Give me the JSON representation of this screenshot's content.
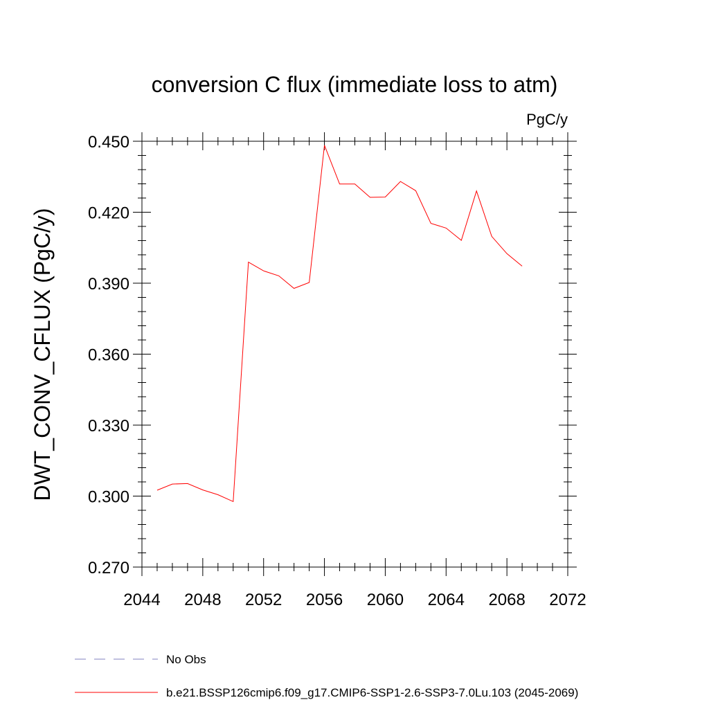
{
  "chart_data": {
    "type": "line",
    "title": "conversion C flux (immediate loss to atm)",
    "units_label": "PgC/y",
    "ylabel": "DWT_CONV_CFLUX  (PgC/y)",
    "xlabel": "",
    "xlim": [
      2044,
      2072
    ],
    "ylim": [
      0.27,
      0.45
    ],
    "x_ticks": [
      2044,
      2048,
      2052,
      2056,
      2060,
      2064,
      2068,
      2072
    ],
    "x_tick_labels": [
      "2044",
      "2048",
      "2052",
      "2056",
      "2060",
      "2064",
      "2068",
      "2072"
    ],
    "y_ticks": [
      0.27,
      0.3,
      0.33,
      0.36,
      0.39,
      0.42,
      0.45
    ],
    "y_tick_labels": [
      "0.270",
      "0.300",
      "0.330",
      "0.360",
      "0.390",
      "0.420",
      "0.450"
    ],
    "grid": false,
    "legend_position": "bottom-left",
    "series": [
      {
        "name": "No Obs",
        "color": "#8080c0",
        "style": "dashed",
        "x": [],
        "y": []
      },
      {
        "name": "b.e21.BSSP126cmip6.f09_g17.CMIP6-SSP1-2.6-SSP3-7.0Lu.103 (2045-2069)",
        "color": "#ff0000",
        "style": "solid",
        "x": [
          2045,
          2046,
          2047,
          2048,
          2049,
          2050,
          2051,
          2052,
          2053,
          2054,
          2055,
          2056,
          2057,
          2058,
          2059,
          2060,
          2061,
          2062,
          2063,
          2064,
          2065,
          2066,
          2067,
          2068,
          2069
        ],
        "y": [
          0.3025,
          0.3051,
          0.3053,
          0.3026,
          0.3006,
          0.2977,
          0.3989,
          0.3952,
          0.3931,
          0.3878,
          0.3903,
          0.4483,
          0.4319,
          0.4319,
          0.4263,
          0.4264,
          0.433,
          0.4291,
          0.4153,
          0.4133,
          0.4081,
          0.429,
          0.4098,
          0.4025,
          0.3972
        ]
      }
    ]
  }
}
